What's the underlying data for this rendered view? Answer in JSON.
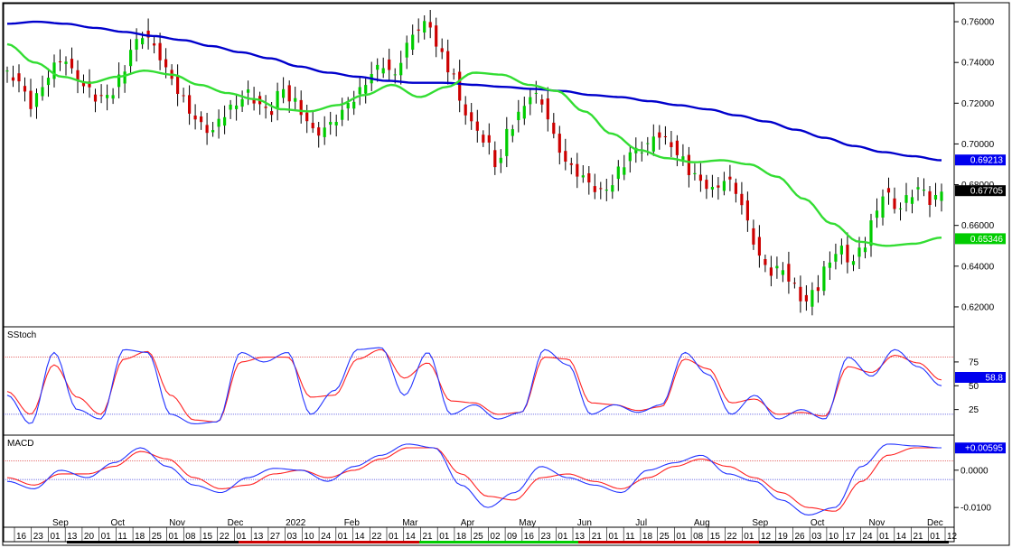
{
  "chart_data": [
    {
      "type": "candlestick",
      "panel": "price",
      "ylim": [
        0.612,
        0.768
      ],
      "y_ticks": [
        "0.76000",
        "0.74000",
        "0.72000",
        "0.70000",
        "0.68000",
        "0.66000",
        "0.64000",
        "0.62000"
      ],
      "y_tick_values": [
        0.76,
        0.74,
        0.72,
        0.7,
        0.68,
        0.66,
        0.64,
        0.62
      ],
      "colors": {
        "up": "#00cc00",
        "down": "#cc0000",
        "ma_long": "#0000cc",
        "ma_short": "#33dd33"
      },
      "ohlc_anchors": [
        0.734,
        0.731,
        0.719,
        0.727,
        0.738,
        0.742,
        0.733,
        0.727,
        0.722,
        0.724,
        0.733,
        0.748,
        0.754,
        0.747,
        0.736,
        0.726,
        0.716,
        0.709,
        0.706,
        0.715,
        0.719,
        0.725,
        0.72,
        0.715,
        0.727,
        0.722,
        0.714,
        0.705,
        0.708,
        0.713,
        0.72,
        0.726,
        0.735,
        0.739,
        0.733,
        0.748,
        0.757,
        0.759,
        0.744,
        0.735,
        0.717,
        0.708,
        0.701,
        0.689,
        0.707,
        0.715,
        0.725,
        0.72,
        0.703,
        0.691,
        0.686,
        0.681,
        0.676,
        0.68,
        0.69,
        0.697,
        0.698,
        0.705,
        0.701,
        0.694,
        0.686,
        0.681,
        0.677,
        0.683,
        0.677,
        0.661,
        0.644,
        0.637,
        0.639,
        0.63,
        0.622,
        0.629,
        0.641,
        0.649,
        0.642,
        0.648,
        0.663,
        0.677,
        0.668,
        0.673,
        0.679,
        0.672,
        0.676
      ],
      "ma_long_anchors": [
        0.759,
        0.76,
        0.759,
        0.757,
        0.755,
        0.753,
        0.751,
        0.748,
        0.745,
        0.742,
        0.738,
        0.735,
        0.733,
        0.731,
        0.73,
        0.73,
        0.729,
        0.728,
        0.727,
        0.726,
        0.724,
        0.723,
        0.721,
        0.719,
        0.717,
        0.714,
        0.711,
        0.707,
        0.703,
        0.699,
        0.696,
        0.694,
        0.692
      ],
      "ma_short_anchors": [
        0.749,
        0.74,
        0.733,
        0.73,
        0.733,
        0.736,
        0.734,
        0.729,
        0.725,
        0.722,
        0.717,
        0.716,
        0.719,
        0.724,
        0.729,
        0.723,
        0.728,
        0.735,
        0.734,
        0.729,
        0.726,
        0.716,
        0.705,
        0.697,
        0.693,
        0.691,
        0.692,
        0.69,
        0.684,
        0.673,
        0.661,
        0.652,
        0.65,
        0.651,
        0.654
      ],
      "last_labels": [
        {
          "text": "0.69213",
          "value": 0.69213,
          "color": "#0000ee"
        },
        {
          "text": "0.67705",
          "value": 0.67705,
          "color": "#000000"
        },
        {
          "text": "0.65346",
          "value": 0.65346,
          "color": "#00cc00"
        }
      ]
    },
    {
      "type": "line",
      "panel": "stochastic",
      "title": "SStoch",
      "ylim": [
        0,
        110
      ],
      "y_ticks": [
        "75",
        "50",
        "25"
      ],
      "y_tick_values": [
        75,
        50,
        25
      ],
      "ref_lines": [
        80,
        20
      ],
      "k_anchors": [
        40,
        10,
        85,
        25,
        15,
        88,
        85,
        20,
        10,
        12,
        85,
        75,
        85,
        20,
        45,
        88,
        90,
        40,
        85,
        20,
        30,
        15,
        22,
        88,
        72,
        20,
        30,
        22,
        30,
        85,
        62,
        20,
        40,
        15,
        25,
        15,
        80,
        60,
        88,
        70,
        50
      ],
      "d_anchors": [
        44,
        20,
        72,
        38,
        20,
        78,
        86,
        40,
        14,
        12,
        75,
        80,
        80,
        38,
        40,
        78,
        88,
        58,
        74,
        34,
        32,
        20,
        22,
        80,
        78,
        32,
        30,
        24,
        28,
        78,
        68,
        32,
        36,
        20,
        22,
        18,
        70,
        64,
        82,
        74,
        56
      ],
      "last_labels": [
        {
          "text": "58.8",
          "value": 58.8,
          "color": "#0000ee"
        }
      ]
    },
    {
      "type": "line",
      "panel": "macd",
      "title": "MACD",
      "ylim": [
        -0.0148,
        0.0089
      ],
      "y_ticks": [
        "0.0000",
        "-0.0100"
      ],
      "y_tick_values": [
        0.0,
        -0.01
      ],
      "ref_lines": [
        0.0025,
        -0.0025
      ],
      "macd_anchors": [
        -0.003,
        -0.005,
        0.0,
        -0.002,
        0.002,
        0.006,
        0.001,
        -0.004,
        -0.006,
        -0.002,
        0.0005,
        0.0,
        -0.003,
        0.001,
        0.004,
        0.007,
        0.006,
        -0.004,
        -0.01,
        -0.006,
        0.001,
        -0.002,
        -0.004,
        -0.006,
        0.0,
        0.002,
        0.004,
        -0.001,
        -0.003,
        -0.008,
        -0.012,
        -0.01,
        0.001,
        0.007,
        0.0065,
        0.006
      ],
      "signal_anchors": [
        -0.002,
        -0.004,
        -0.001,
        -0.001,
        0.001,
        0.005,
        0.003,
        -0.002,
        -0.005,
        -0.004,
        -0.001,
        0.0,
        -0.002,
        0.0,
        0.003,
        0.006,
        0.006,
        -0.001,
        -0.007,
        -0.008,
        -0.002,
        -0.001,
        -0.003,
        -0.005,
        -0.002,
        0.001,
        0.003,
        0.001,
        -0.002,
        -0.006,
        -0.01,
        -0.011,
        -0.003,
        0.004,
        0.006,
        0.006
      ],
      "last_labels": [
        {
          "text": "+0.00595",
          "value": 0.00595,
          "color": "#0000ee"
        }
      ]
    }
  ],
  "x_axis": {
    "day_labels": [
      "16",
      "23",
      "01",
      "13",
      "20",
      "01",
      "11",
      "18",
      "25",
      "01",
      "08",
      "15",
      "22",
      "01",
      "13",
      "27",
      "03",
      "10",
      "24",
      "01",
      "14",
      "22",
      "01",
      "14",
      "21",
      "01",
      "18",
      "25",
      "02",
      "09",
      "16",
      "23",
      "01",
      "13",
      "21",
      "01",
      "11",
      "18",
      "25",
      "01",
      "08",
      "15",
      "22",
      "01",
      "12",
      "19",
      "26",
      "03",
      "10",
      "17",
      "24",
      "01",
      "14",
      "21",
      "01",
      "12"
    ],
    "month_labels": [
      "Sep",
      "Oct",
      "Nov",
      "Dec",
      "2022",
      "Feb",
      "Mar",
      "Apr",
      "May",
      "Jun",
      "Jul",
      "Aug",
      "Sep",
      "Oct",
      "Nov",
      "Dec"
    ]
  }
}
